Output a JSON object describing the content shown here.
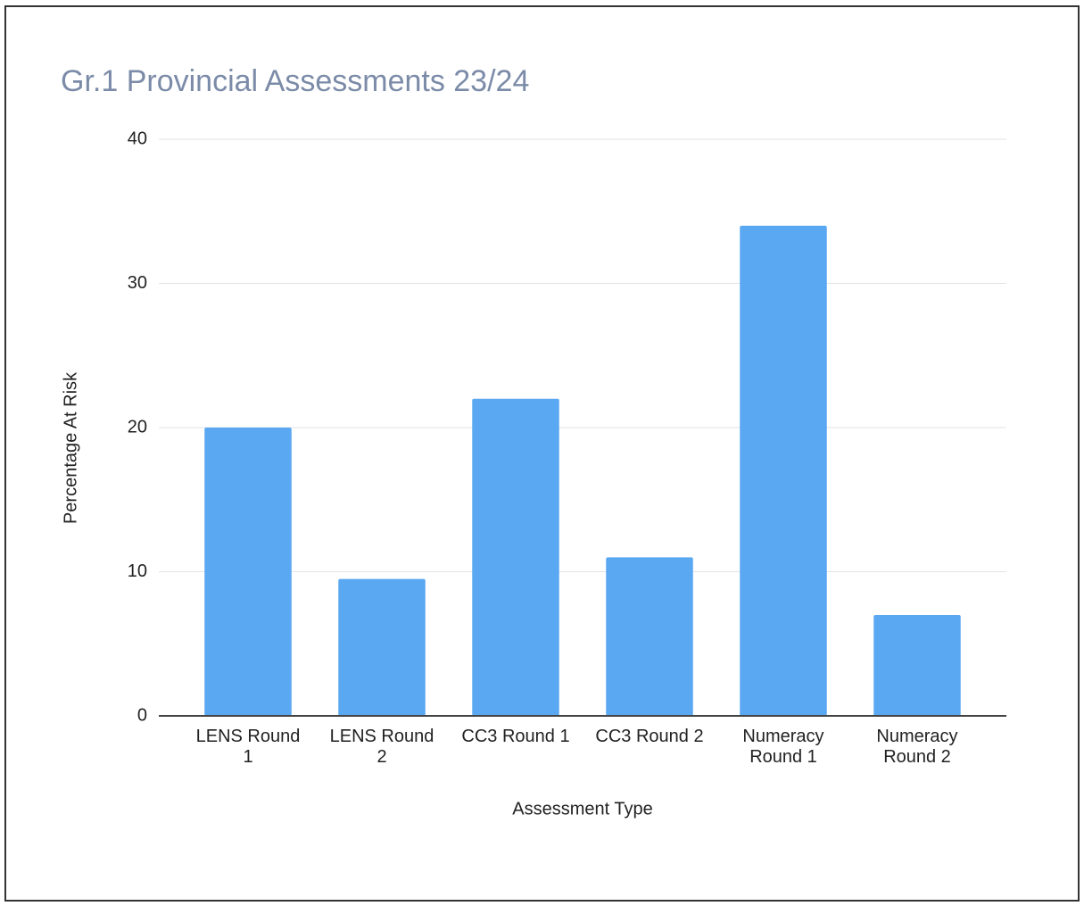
{
  "chart_data": {
    "type": "bar",
    "title": "Gr.1 Provincial Assessments 23/24",
    "x_label": "Assessment Type",
    "y_label": "Percentage At Risk",
    "categories": [
      "LENS Round 1",
      "LENS Round 2",
      "CC3 Round 1",
      "CC3 Round 2",
      "Numeracy Round 1",
      "Numeracy Round 2"
    ],
    "values": [
      20,
      9.5,
      22,
      11,
      34,
      7
    ],
    "color": "#5aa7f2",
    "ylim": [
      0,
      40
    ],
    "yticks": [
      0,
      10,
      20,
      30,
      40
    ],
    "grid": true
  }
}
